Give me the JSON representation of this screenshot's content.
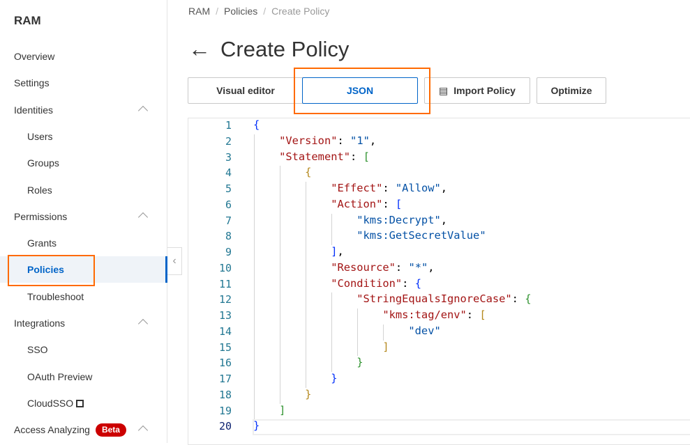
{
  "sidebar": {
    "title": "RAM",
    "items": [
      {
        "label": "Overview",
        "level": "top"
      },
      {
        "label": "Settings",
        "level": "top"
      },
      {
        "label": "Identities",
        "level": "top",
        "expandable": true
      },
      {
        "label": "Users",
        "level": "sub"
      },
      {
        "label": "Groups",
        "level": "sub"
      },
      {
        "label": "Roles",
        "level": "sub"
      },
      {
        "label": "Permissions",
        "level": "top",
        "expandable": true
      },
      {
        "label": "Grants",
        "level": "sub"
      },
      {
        "label": "Policies",
        "level": "sub",
        "active": true
      },
      {
        "label": "Troubleshoot",
        "level": "sub"
      },
      {
        "label": "Integrations",
        "level": "top",
        "expandable": true
      },
      {
        "label": "SSO",
        "level": "sub"
      },
      {
        "label": "OAuth Preview",
        "level": "sub"
      },
      {
        "label": "CloudSSO",
        "level": "sub",
        "external": true
      },
      {
        "label": "Access Analyzing",
        "level": "top",
        "expandable": true,
        "badge": "Beta"
      }
    ]
  },
  "breadcrumb": [
    "RAM",
    "Policies",
    "Create Policy"
  ],
  "page_title": "Create Policy",
  "tabs": {
    "visual": "Visual editor",
    "json": "JSON",
    "import": "Import Policy",
    "optimize": "Optimize",
    "selected": "JSON"
  },
  "editor": {
    "current_line": 20,
    "lines": [
      "{",
      "    \"Version\": \"1\",",
      "    \"Statement\": [",
      "        {",
      "            \"Effect\": \"Allow\",",
      "            \"Action\": [",
      "                \"kms:Decrypt\",",
      "                \"kms:GetSecretValue\"",
      "            ],",
      "            \"Resource\": \"*\",",
      "            \"Condition\": {",
      "                \"StringEqualsIgnoreCase\": {",
      "                    \"kms:tag/env\": [",
      "                        \"dev\"",
      "                    ]",
      "                }",
      "            }",
      "        }",
      "    ]",
      "}"
    ]
  },
  "colors": {
    "accent": "#0064c8",
    "highlight": "#ff6a00",
    "badge": "#cc0000",
    "bracket_cycle": [
      "#0431fa",
      "#319331",
      "#b5891f"
    ]
  }
}
